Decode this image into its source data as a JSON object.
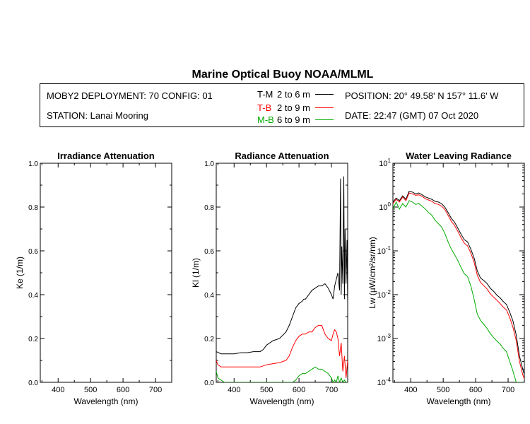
{
  "header": {
    "title": "Marine Optical Buoy NOAA/MLML",
    "deployment": "MOBY2 DEPLOYMENT: 70 CONFIG: 01",
    "station": "STATION: Lanai Mooring",
    "position": "POSITION: 20° 49.58' N   157° 11.6' W",
    "date": "DATE: 22:47 (GMT) 07 Oct 2020"
  },
  "legend": [
    {
      "code": "T-M",
      "range": "2 to 6  m",
      "color": "#000000"
    },
    {
      "code": "T-B",
      "range": "2 to 9  m",
      "color": "#ff0000"
    },
    {
      "code": "M-B",
      "range": "6 to 9  m",
      "color": "#00aa00"
    }
  ],
  "chart_data": [
    {
      "type": "line",
      "title": "Irradiance Attenuation",
      "xlabel": "Wavelength (nm)",
      "ylabel": "Ke  (1/m)",
      "xlim": [
        345,
        750
      ],
      "ylim": [
        0,
        1
      ],
      "xticks": [
        400,
        500,
        600,
        700
      ],
      "yticks": [
        "0.0",
        "0.2",
        "0.4",
        "0.6",
        "0.8",
        "1.0"
      ],
      "series": []
    },
    {
      "type": "line",
      "title": "Radiance Attenuation",
      "xlabel": "Wavelength (nm)",
      "ylabel": "Kl  (1/m)",
      "xlim": [
        345,
        750
      ],
      "ylim": [
        0,
        1
      ],
      "xticks": [
        400,
        500,
        600,
        700
      ],
      "yticks": [
        "0.0",
        "0.2",
        "0.4",
        "0.6",
        "0.8",
        "1.0"
      ],
      "series": [
        {
          "color": "#000000",
          "x": [
            345,
            360,
            380,
            400,
            420,
            440,
            460,
            480,
            490,
            500,
            520,
            540,
            560,
            570,
            580,
            590,
            600,
            610,
            615,
            620,
            630,
            640,
            650,
            660,
            670,
            680,
            690,
            700,
            705,
            710,
            715,
            720,
            725,
            728,
            730,
            732,
            735,
            738,
            740,
            742,
            745,
            748,
            750
          ],
          "y": [
            0.14,
            0.13,
            0.13,
            0.13,
            0.135,
            0.135,
            0.14,
            0.14,
            0.15,
            0.17,
            0.19,
            0.2,
            0.23,
            0.26,
            0.3,
            0.34,
            0.36,
            0.37,
            0.38,
            0.38,
            0.4,
            0.42,
            0.43,
            0.44,
            0.44,
            0.45,
            0.43,
            0.4,
            0.38,
            0.44,
            0.47,
            0.5,
            0.42,
            0.93,
            0.4,
            0.62,
            0.45,
            0.94,
            0.38,
            0.7,
            0.45,
            0.65,
            0.36
          ]
        },
        {
          "color": "#ff0000",
          "x": [
            345,
            350,
            360,
            380,
            400,
            420,
            440,
            460,
            480,
            500,
            520,
            540,
            560,
            570,
            580,
            590,
            600,
            610,
            620,
            630,
            640,
            650,
            660,
            670,
            680,
            690,
            700,
            705,
            710,
            715,
            720,
            725,
            730,
            735,
            740,
            745,
            750
          ],
          "y": [
            0.1,
            0.08,
            0.07,
            0.07,
            0.07,
            0.07,
            0.07,
            0.07,
            0.07,
            0.08,
            0.085,
            0.09,
            0.1,
            0.12,
            0.16,
            0.19,
            0.21,
            0.22,
            0.22,
            0.23,
            0.23,
            0.25,
            0.26,
            0.26,
            0.22,
            0.2,
            0.19,
            0.22,
            0.24,
            0.23,
            0.2,
            0.12,
            0.18,
            0.05,
            0.12,
            0.02,
            0.1
          ]
        },
        {
          "color": "#00aa00",
          "x": [
            345,
            350,
            360,
            370,
            380,
            400,
            580,
            590,
            600,
            610,
            620,
            630,
            640,
            650,
            660,
            670,
            680,
            690,
            700,
            705,
            710,
            715,
            720,
            725,
            730,
            735,
            740,
            745,
            750
          ],
          "y": [
            0.05,
            0.02,
            0.01,
            0.0,
            0.0,
            0.0,
            0.0,
            0.01,
            0.03,
            0.04,
            0.04,
            0.05,
            0.06,
            0.07,
            0.06,
            0.06,
            0.05,
            0.04,
            0.02,
            0.0,
            0.01,
            0.0,
            0.03,
            0.0,
            0.02,
            0.0,
            0.01,
            0.0,
            0.0
          ]
        }
      ]
    },
    {
      "type": "line",
      "title": "Water Leaving Radiance",
      "xlabel": "Wavelength (nm)",
      "ylabel": "Lw  (µW/cm²/sr/nm)",
      "xlim": [
        345,
        750
      ],
      "ylim": [
        0.0001,
        10
      ],
      "yscale": "log",
      "xticks": [
        400,
        500,
        600,
        700
      ],
      "yticks": [
        10,
        1,
        0.1,
        0.01,
        0.001,
        0.0001
      ],
      "series": [
        {
          "color": "#000000",
          "x": [
            345,
            355,
            365,
            375,
            385,
            395,
            405,
            415,
            425,
            435,
            445,
            455,
            465,
            475,
            485,
            495,
            505,
            515,
            525,
            535,
            545,
            555,
            565,
            575,
            585,
            595,
            605,
            615,
            625,
            635,
            645,
            655,
            665,
            675,
            685,
            695,
            705,
            715,
            725,
            735,
            745,
            750
          ],
          "y": [
            1.3,
            1.6,
            1.4,
            1.8,
            1.5,
            2.3,
            2.2,
            2.0,
            2.1,
            1.9,
            1.7,
            1.6,
            1.5,
            1.35,
            1.3,
            1.2,
            1.0,
            0.75,
            0.55,
            0.45,
            0.33,
            0.24,
            0.18,
            0.16,
            0.11,
            0.07,
            0.035,
            0.024,
            0.021,
            0.018,
            0.014,
            0.012,
            0.0098,
            0.0085,
            0.007,
            0.006,
            0.004,
            0.0025,
            0.0012,
            0.0004,
            0.0002,
            0.00015
          ]
        },
        {
          "color": "#ff0000",
          "x": [
            345,
            355,
            365,
            375,
            385,
            395,
            405,
            415,
            425,
            435,
            445,
            455,
            465,
            475,
            485,
            495,
            505,
            515,
            525,
            535,
            545,
            555,
            565,
            575,
            585,
            595,
            605,
            615,
            625,
            635,
            645,
            655,
            665,
            675,
            685,
            695,
            705,
            715,
            725,
            735,
            745,
            750
          ],
          "y": [
            1.2,
            1.5,
            1.3,
            1.7,
            1.4,
            2.1,
            2.0,
            1.85,
            1.9,
            1.75,
            1.55,
            1.45,
            1.35,
            1.2,
            1.15,
            1.05,
            0.88,
            0.65,
            0.47,
            0.38,
            0.28,
            0.2,
            0.15,
            0.13,
            0.09,
            0.056,
            0.028,
            0.019,
            0.016,
            0.0135,
            0.0105,
            0.0088,
            0.0075,
            0.0063,
            0.0052,
            0.0045,
            0.003,
            0.0018,
            0.0009,
            0.0003,
            0.00015,
            0.00012
          ]
        },
        {
          "color": "#00aa00",
          "x": [
            345,
            355,
            365,
            375,
            385,
            395,
            405,
            415,
            425,
            435,
            445,
            455,
            465,
            475,
            485,
            495,
            505,
            515,
            525,
            535,
            545,
            555,
            565,
            575,
            585,
            595,
            605,
            615,
            625,
            635,
            645,
            655,
            665,
            675,
            685,
            695,
            705,
            715,
            725,
            735,
            745
          ],
          "y": [
            0.9,
            1.3,
            0.9,
            1.2,
            1.0,
            1.4,
            1.3,
            1.15,
            1.2,
            1.05,
            0.9,
            0.75,
            0.65,
            0.5,
            0.42,
            0.35,
            0.25,
            0.16,
            0.11,
            0.082,
            0.06,
            0.042,
            0.03,
            0.026,
            0.016,
            0.008,
            0.0036,
            0.0026,
            0.0021,
            0.0017,
            0.0013,
            0.00105,
            0.00088,
            0.00075,
            0.0006,
            0.0005,
            0.0003,
            0.00018,
            0.0001,
            0.0001,
            0.0001
          ]
        }
      ]
    }
  ]
}
